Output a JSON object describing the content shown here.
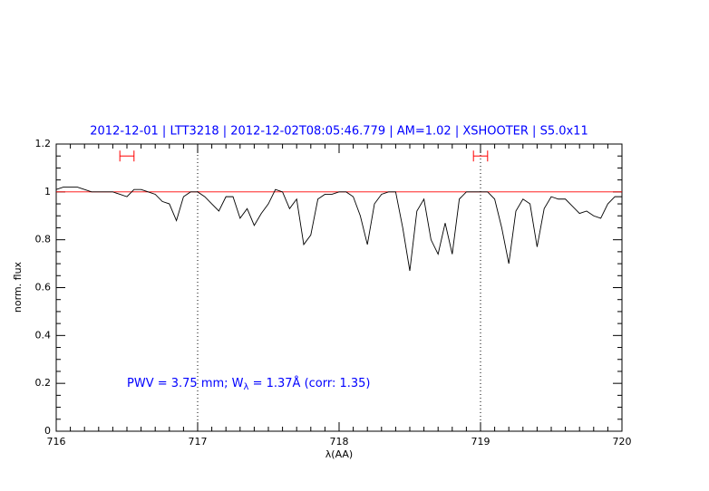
{
  "chart_data": {
    "type": "line",
    "title": "2012-12-01 | LTT3218 | 2012-12-02T08:05:46.779 | AM=1.02 | XSHOOTER | S5.0x11",
    "xlabel": "λ(AA)",
    "ylabel": "norm. flux",
    "annotation": [
      "PWV = 3.75 mm; W",
      "λ",
      " = 1.37Å (corr: 1.35)"
    ],
    "xlim": [
      716,
      720
    ],
    "ylim": [
      0,
      1.2
    ],
    "xticks": [
      716,
      717,
      718,
      719,
      720
    ],
    "yticks": [
      0,
      0.2,
      0.4,
      0.6,
      0.8,
      1,
      1.2
    ],
    "reference_line": {
      "y": 1,
      "color": "#ff0000"
    },
    "vlines": [
      717,
      719
    ],
    "ranges": {
      "color": "#ff0000",
      "items": [
        {
          "xmin": 716.45,
          "xmax": 716.55,
          "y": 1.15
        },
        {
          "xmin": 718.95,
          "xmax": 719.05,
          "y": 1.15
        }
      ]
    },
    "series": [
      {
        "name": "flux",
        "color": "#000000",
        "x": [
          716.0,
          716.05,
          716.1,
          716.15,
          716.2,
          716.25,
          716.3,
          716.35,
          716.4,
          716.45,
          716.5,
          716.55,
          716.6,
          716.65,
          716.7,
          716.75,
          716.8,
          716.85,
          716.9,
          716.95,
          717.0,
          717.05,
          717.1,
          717.15,
          717.2,
          717.25,
          717.3,
          717.35,
          717.4,
          717.45,
          717.5,
          717.55,
          717.6,
          717.65,
          717.7,
          717.75,
          717.8,
          717.85,
          717.9,
          717.95,
          718.0,
          718.05,
          718.1,
          718.15,
          718.2,
          718.25,
          718.3,
          718.35,
          718.4,
          718.45,
          718.5,
          718.55,
          718.6,
          718.65,
          718.7,
          718.75,
          718.8,
          718.85,
          718.9,
          718.95,
          719.0,
          719.05,
          719.1,
          719.15,
          719.2,
          719.25,
          719.3,
          719.35,
          719.4,
          719.45,
          719.5,
          719.55,
          719.6,
          719.65,
          719.7,
          719.75,
          719.8,
          719.85,
          719.9,
          719.95,
          720.0
        ],
        "values": [
          1.01,
          1.02,
          1.02,
          1.02,
          1.01,
          1.0,
          1.0,
          1.0,
          1.0,
          0.99,
          0.98,
          1.01,
          1.01,
          1.0,
          0.99,
          0.96,
          0.95,
          0.88,
          0.98,
          1.0,
          1.0,
          0.98,
          0.95,
          0.92,
          0.98,
          0.98,
          0.89,
          0.93,
          0.86,
          0.91,
          0.95,
          1.01,
          1.0,
          0.93,
          0.97,
          0.78,
          0.82,
          0.97,
          0.99,
          0.99,
          1.0,
          1.0,
          0.98,
          0.9,
          0.78,
          0.95,
          0.99,
          1.0,
          1.0,
          0.85,
          0.67,
          0.92,
          0.97,
          0.8,
          0.74,
          0.87,
          0.74,
          0.97,
          1.0,
          1.0,
          1.0,
          1.0,
          0.97,
          0.85,
          0.7,
          0.92,
          0.97,
          0.95,
          0.77,
          0.93,
          0.98,
          0.97,
          0.97,
          0.94,
          0.91,
          0.92,
          0.9,
          0.89,
          0.95,
          0.98,
          0.98
        ]
      }
    ]
  }
}
